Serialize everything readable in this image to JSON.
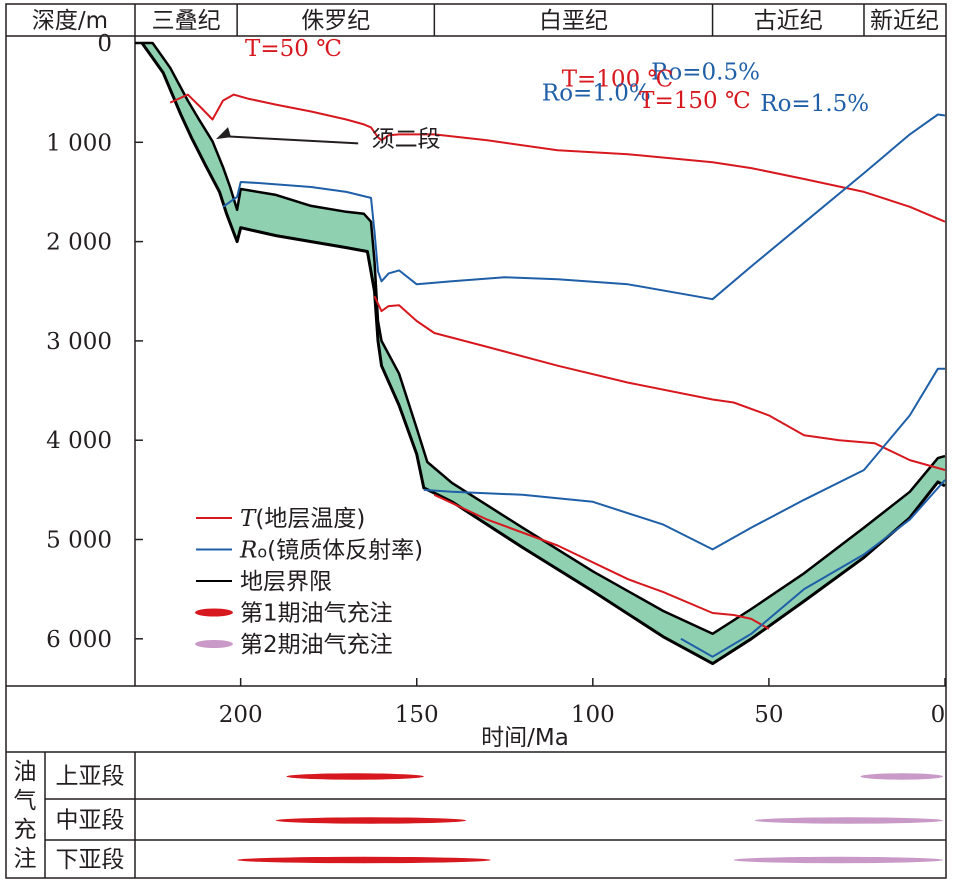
{
  "chart_data": {
    "type": "line",
    "y_axis": {
      "label": "深度/m",
      "range": [
        0,
        6500
      ],
      "ticks": [
        0,
        1000,
        2000,
        3000,
        4000,
        5000,
        6000
      ],
      "tick_labels": [
        "0",
        "1 000",
        "2 000",
        "3 000",
        "4 000",
        "5 000",
        "6 000"
      ]
    },
    "x_axis": {
      "label": "时间/Ma",
      "range": [
        230,
        0
      ],
      "ticks": [
        200,
        150,
        100,
        50,
        0
      ],
      "tick_labels": [
        "200",
        "150",
        "100",
        "50",
        "0"
      ]
    },
    "periods": [
      {
        "name": "三叠纪",
        "from": 230,
        "to": 201
      },
      {
        "name": "侏罗纪",
        "from": 201,
        "to": 145
      },
      {
        "name": "白垩纪",
        "from": 145,
        "to": 66
      },
      {
        "name": "古近纪",
        "from": 66,
        "to": 23
      },
      {
        "name": "新近纪",
        "from": 23,
        "to": 0
      }
    ],
    "colors": {
      "temperature": "#d7191f",
      "ro": "#1f5fa8",
      "boundary": "#000000",
      "fill": "#8fd0b1",
      "charge1": "#d7191f",
      "charge2": "#c99ac8"
    },
    "series": [
      {
        "name": "T=50 ℃",
        "kind": "temperature",
        "label_at": [
          185,
          50
        ],
        "points": [
          [
            220,
            600
          ],
          [
            215,
            520
          ],
          [
            211,
            660
          ],
          [
            208,
            770
          ],
          [
            205,
            580
          ],
          [
            202,
            520
          ],
          [
            198,
            560
          ],
          [
            190,
            620
          ],
          [
            180,
            690
          ],
          [
            170,
            770
          ],
          [
            165,
            820
          ],
          [
            163,
            850
          ],
          [
            161,
            950
          ],
          [
            160,
            980
          ],
          [
            158,
            930
          ],
          [
            155,
            920
          ],
          [
            145,
            920
          ],
          [
            130,
            980
          ],
          [
            110,
            1080
          ],
          [
            90,
            1120
          ],
          [
            66,
            1200
          ],
          [
            55,
            1260
          ],
          [
            40,
            1370
          ],
          [
            23,
            1500
          ],
          [
            10,
            1650
          ],
          [
            0,
            1800
          ]
        ]
      },
      {
        "name": "Ro=0.5%",
        "kind": "ro",
        "label_at": [
          68,
          285
        ],
        "points": [
          [
            205,
            1650
          ],
          [
            201,
            1550
          ],
          [
            200,
            1400
          ],
          [
            195,
            1410
          ],
          [
            180,
            1450
          ],
          [
            170,
            1500
          ],
          [
            163,
            1560
          ],
          [
            162,
            1900
          ],
          [
            161,
            2300
          ],
          [
            160,
            2400
          ],
          [
            158,
            2320
          ],
          [
            155,
            2290
          ],
          [
            150,
            2430
          ],
          [
            140,
            2400
          ],
          [
            125,
            2360
          ],
          [
            110,
            2380
          ],
          [
            90,
            2430
          ],
          [
            66,
            2580
          ],
          [
            55,
            2250
          ],
          [
            40,
            1810
          ],
          [
            23,
            1310
          ],
          [
            10,
            920
          ],
          [
            2,
            720
          ],
          [
            0,
            730
          ]
        ]
      },
      {
        "name": "T=100 ℃",
        "kind": "temperature",
        "label_at": [
          93,
          355
        ],
        "points": [
          [
            162,
            2550
          ],
          [
            160,
            2700
          ],
          [
            158,
            2650
          ],
          [
            155,
            2640
          ],
          [
            150,
            2800
          ],
          [
            145,
            2920
          ],
          [
            130,
            3060
          ],
          [
            110,
            3250
          ],
          [
            90,
            3420
          ],
          [
            66,
            3590
          ],
          [
            60,
            3620
          ],
          [
            50,
            3750
          ],
          [
            40,
            3950
          ],
          [
            30,
            4000
          ],
          [
            20,
            4030
          ],
          [
            10,
            4200
          ],
          [
            0,
            4300
          ]
        ]
      },
      {
        "name": "Ro=1.0%",
        "kind": "ro",
        "label_at": [
          99,
          500
        ],
        "points": [
          [
            148,
            4500
          ],
          [
            140,
            4520
          ],
          [
            120,
            4550
          ],
          [
            100,
            4620
          ],
          [
            80,
            4850
          ],
          [
            66,
            5100
          ],
          [
            55,
            4880
          ],
          [
            40,
            4600
          ],
          [
            23,
            4300
          ],
          [
            10,
            3750
          ],
          [
            2,
            3280
          ],
          [
            0,
            3280
          ]
        ]
      },
      {
        "name": "T=150 ℃",
        "kind": "temperature",
        "label_at": [
          71,
          575
        ],
        "points": [
          [
            145,
            4550
          ],
          [
            130,
            4800
          ],
          [
            110,
            5060
          ],
          [
            90,
            5400
          ],
          [
            80,
            5530
          ],
          [
            66,
            5740
          ],
          [
            60,
            5760
          ],
          [
            55,
            5800
          ],
          [
            50,
            5900
          ]
        ]
      },
      {
        "name": "Ro=1.5%",
        "kind": "ro",
        "label_at": [
          37,
          605
        ],
        "points": [
          [
            75,
            6000
          ],
          [
            66,
            6180
          ],
          [
            55,
            5950
          ],
          [
            40,
            5500
          ],
          [
            23,
            5150
          ],
          [
            10,
            4800
          ],
          [
            0,
            4400
          ]
        ]
      }
    ],
    "boundaries": {
      "upper": [
        [
          230,
          0
        ],
        [
          225,
          0
        ],
        [
          220,
          250
        ],
        [
          215,
          580
        ],
        [
          212,
          760
        ],
        [
          208,
          990
        ],
        [
          205,
          1250
        ],
        [
          203,
          1450
        ],
        [
          201,
          1680
        ],
        [
          200,
          1470
        ],
        [
          190,
          1530
        ],
        [
          180,
          1640
        ],
        [
          170,
          1700
        ],
        [
          165,
          1720
        ],
        [
          163,
          1800
        ],
        [
          162,
          2200
        ],
        [
          161,
          2800
        ],
        [
          160,
          3000
        ],
        [
          155,
          3330
        ],
        [
          150,
          3880
        ],
        [
          147,
          4220
        ],
        [
          140,
          4430
        ],
        [
          120,
          4880
        ],
        [
          100,
          5320
        ],
        [
          80,
          5720
        ],
        [
          66,
          5950
        ],
        [
          55,
          5700
        ],
        [
          40,
          5340
        ],
        [
          23,
          4880
        ],
        [
          10,
          4520
        ],
        [
          2,
          4180
        ],
        [
          0,
          4160
        ]
      ],
      "lower": [
        [
          228,
          0
        ],
        [
          222,
          300
        ],
        [
          217,
          720
        ],
        [
          214,
          950
        ],
        [
          210,
          1230
        ],
        [
          206,
          1500
        ],
        [
          204,
          1720
        ],
        [
          201,
          2000
        ],
        [
          200,
          1860
        ],
        [
          190,
          1940
        ],
        [
          180,
          2000
        ],
        [
          170,
          2060
        ],
        [
          164,
          2100
        ],
        [
          162,
          2500
        ],
        [
          161,
          3000
        ],
        [
          160,
          3250
        ],
        [
          155,
          3650
        ],
        [
          150,
          4140
        ],
        [
          148,
          4480
        ],
        [
          140,
          4620
        ],
        [
          120,
          5080
        ],
        [
          100,
          5520
        ],
        [
          80,
          5980
        ],
        [
          66,
          6250
        ],
        [
          55,
          6000
        ],
        [
          40,
          5620
        ],
        [
          23,
          5180
        ],
        [
          10,
          4780
        ],
        [
          2,
          4420
        ],
        [
          0,
          4460
        ]
      ]
    },
    "annotations": [
      {
        "text": "须二段",
        "at": [
          153,
          960
        ],
        "arrow_to": [
          207,
          1170
        ]
      }
    ],
    "legend": {
      "placement": "bottom-left",
      "items": [
        {
          "label_pre": "T",
          "label": "(地层温度)",
          "style": "line",
          "color": "#d7191f"
        },
        {
          "label_pre": "R",
          "label_sub": "o",
          "label": "(镜质体反射率)",
          "style": "line",
          "color": "#1f5fa8"
        },
        {
          "label_pre": "",
          "label": "地层界限",
          "style": "line",
          "color": "#000000"
        },
        {
          "label_pre": "",
          "label": "第1期油气充注",
          "style": "ellipse",
          "color": "#d7191f"
        },
        {
          "label_pre": "",
          "label": "第2期油气充注",
          "style": "ellipse",
          "color": "#c99ac8"
        }
      ]
    },
    "charge_panel": {
      "group_label": "油气充注",
      "rows": [
        {
          "name": "上亚段",
          "events": [
            {
              "phase": 1,
              "from": 187,
              "to": 148
            },
            {
              "phase": 2,
              "from": 24,
              "to": 0
            }
          ]
        },
        {
          "name": "中亚段",
          "events": [
            {
              "phase": 1,
              "from": 190,
              "to": 136
            },
            {
              "phase": 2,
              "from": 54,
              "to": 0
            }
          ]
        },
        {
          "name": "下亚段",
          "events": [
            {
              "phase": 1,
              "from": 201,
              "to": 129
            },
            {
              "phase": 2,
              "from": 60,
              "to": 0
            }
          ]
        }
      ]
    }
  }
}
